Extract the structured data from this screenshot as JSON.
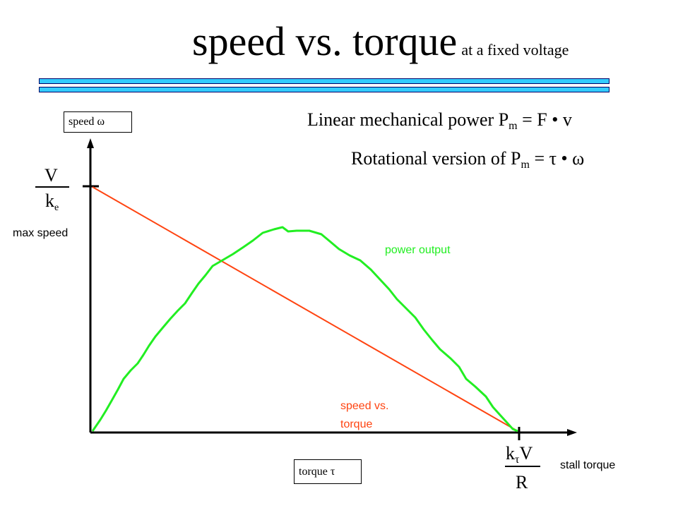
{
  "title": {
    "main": "speed vs. torque",
    "sub": "at a fixed voltage"
  },
  "axes": {
    "y_label": {
      "text": "speed",
      "symbol": "ω"
    },
    "x_label": {
      "text": "torque",
      "symbol": "τ"
    }
  },
  "formulas": {
    "linear": {
      "prefix": "Linear mechanical power  P",
      "sub": "m",
      "suffix": " =  F • v"
    },
    "rotational": {
      "prefix": "Rotational version of P",
      "sub": "m",
      "suffix": " =  τ • ω"
    }
  },
  "max_speed": {
    "numerator": "V",
    "denominator_base": "k",
    "denominator_sub": "e",
    "label": "max speed"
  },
  "stall_torque": {
    "numerator_base": "k",
    "numerator_sub": "τ",
    "numerator_tail": "V",
    "denominator": "R",
    "label": "stall torque"
  },
  "curves": {
    "power": {
      "label": "power output",
      "color": "#22ee22"
    },
    "speed_torque": {
      "label_line1": "speed vs.",
      "label_line2": "torque",
      "color": "#ff4411"
    }
  },
  "colors": {
    "title_rule": "#33ccff",
    "axis": "#000000"
  }
}
